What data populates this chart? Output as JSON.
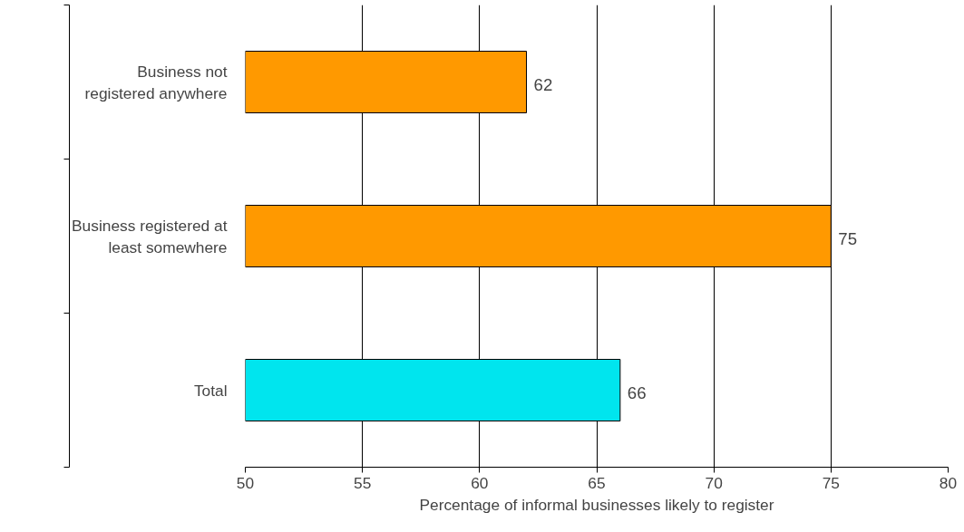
{
  "chart_data": {
    "type": "bar",
    "orientation": "horizontal",
    "xlabel": "Percentage of informal businesses likely to register",
    "categories": [
      "Business not\nregistered anywhere",
      "Business registered at\nleast somewhere",
      "Total"
    ],
    "values": [
      62,
      75,
      66
    ],
    "colors": [
      "#ff9900",
      "#ff9900",
      "#00e5ee"
    ],
    "xlim": [
      50,
      80
    ],
    "xticks": [
      50,
      55,
      60,
      65,
      70,
      75,
      80
    ],
    "grid": "x",
    "data_labels": true
  }
}
